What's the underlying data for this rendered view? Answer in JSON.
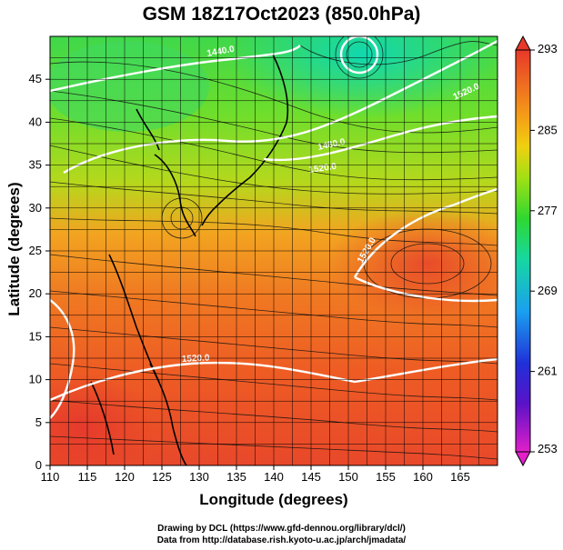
{
  "title": "GSM 18Z17Oct2023 (850.0hPa)",
  "chart_data": {
    "type": "heatmap",
    "title": "GSM 18Z17Oct2023 (850.0hPa)",
    "xlabel": "Longitude (degrees)",
    "ylabel": "Latitude  (degrees)",
    "xlim": [
      110,
      170
    ],
    "ylim": [
      0,
      50
    ],
    "x_ticks": [
      "110",
      "115",
      "120",
      "125",
      "130",
      "135",
      "140",
      "145",
      "150",
      "155",
      "160",
      "165"
    ],
    "y_ticks": [
      "0",
      "5",
      "10",
      "15",
      "20",
      "25",
      "30",
      "35",
      "40",
      "45"
    ],
    "colorbar": {
      "ticks": [
        "253",
        "261",
        "269",
        "277",
        "285",
        "293"
      ],
      "min": 253,
      "max": 293
    },
    "contour_labels": [
      "1440.0",
      "1480.0",
      "1520.0",
      "1520.0",
      "1520.0",
      "1520.0"
    ],
    "grid": true
  },
  "credits": {
    "line1": "Drawing by DCL (https://www.gfd-dennou.org/library/dcl/)",
    "line2": "Data from http://database.rish.kyoto-u.ac.jp/arch/jmadata/"
  }
}
